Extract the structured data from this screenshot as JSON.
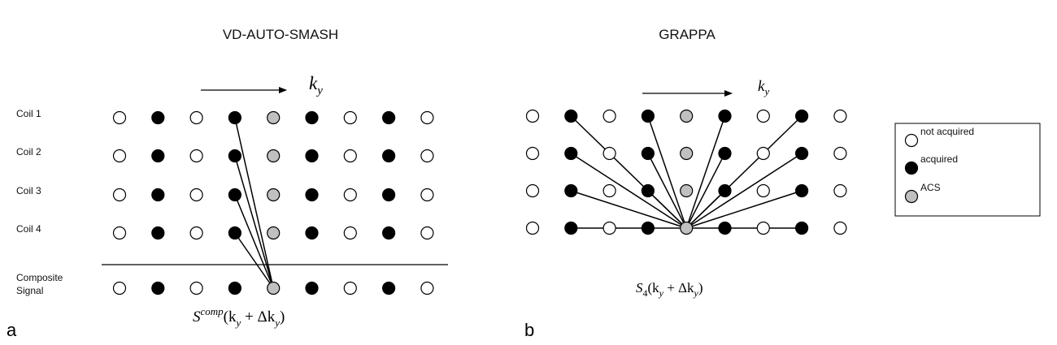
{
  "left": {
    "title": "VD-AUTO-SMASH",
    "panel_label": "a",
    "axis_symbol": "k",
    "axis_subscript": "y",
    "rows": [
      {
        "label": "Coil 1",
        "points": [
          "not",
          "acq",
          "not",
          "acq",
          "acs",
          "acq",
          "not",
          "acq",
          "not"
        ]
      },
      {
        "label": "Coil 2",
        "points": [
          "not",
          "acq",
          "not",
          "acq",
          "acs",
          "acq",
          "not",
          "acq",
          "not"
        ]
      },
      {
        "label": "Coil 3",
        "points": [
          "not",
          "acq",
          "not",
          "acq",
          "acs",
          "acq",
          "not",
          "acq",
          "not"
        ]
      },
      {
        "label": "Coil 4",
        "points": [
          "not",
          "acq",
          "not",
          "acq",
          "acs",
          "acq",
          "not",
          "acq",
          "not"
        ]
      }
    ],
    "composite_label": [
      "Composite",
      "Signal"
    ],
    "composite_points": [
      "not",
      "acq",
      "not",
      "acq",
      "acs",
      "acq",
      "not",
      "acq",
      "not"
    ],
    "formula": {
      "main": "S",
      "sup": "comp",
      "rest": "(k",
      "sub1": "y",
      "mid": " + Δk",
      "sub2": "y",
      "end": ")"
    }
  },
  "right": {
    "title": "GRAPPA",
    "panel_label": "b",
    "axis_symbol": "k",
    "axis_subscript": "y",
    "rows": [
      {
        "points": [
          "not",
          "acq",
          "not",
          "acq",
          "acs",
          "acq",
          "not",
          "acq",
          "not"
        ]
      },
      {
        "points": [
          "not",
          "acq",
          "not",
          "acq",
          "acs",
          "acq",
          "not",
          "acq",
          "not"
        ]
      },
      {
        "points": [
          "not",
          "acq",
          "not",
          "acq",
          "acs",
          "acq",
          "not",
          "acq",
          "not"
        ]
      },
      {
        "points": [
          "not",
          "acq",
          "not",
          "acq",
          "acs",
          "acq",
          "not",
          "acq",
          "not"
        ]
      }
    ],
    "formula": {
      "main": "S",
      "sub0": "4",
      "rest": "(k",
      "sub1": "y",
      "mid": " + Δk",
      "sub2": "y",
      "end": ")"
    }
  },
  "legend": [
    {
      "type": "not",
      "label": "not acquired"
    },
    {
      "type": "acq",
      "label": "acquired"
    },
    {
      "type": "acs",
      "label": "ACS"
    }
  ],
  "colors": {
    "acquired": "#000000",
    "acs": "#c0c0c0",
    "not_acquired": "#ffffff",
    "stroke": "#000000"
  }
}
